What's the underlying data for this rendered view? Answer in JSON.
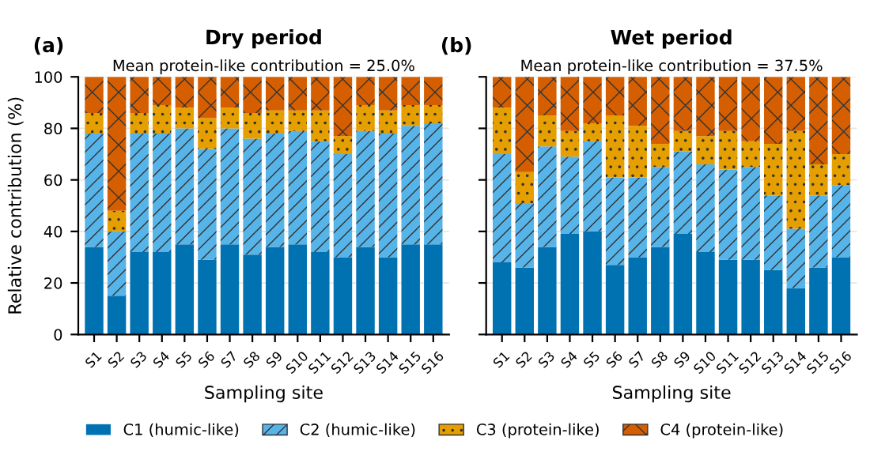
{
  "chart_data": [
    {
      "type": "bar",
      "stacked": true,
      "title": "Dry period",
      "subtitle": "Mean protein-like contribution = 25.0%",
      "xlabel": "Sampling site",
      "ylabel": "Relative contribution (%)",
      "annotations": [
        "(a)"
      ],
      "categories": [
        "S1",
        "S2",
        "S3",
        "S4",
        "S5",
        "S6",
        "S7",
        "S8",
        "S9",
        "S10",
        "S11",
        "S12",
        "S13",
        "S14",
        "S15",
        "S16"
      ],
      "series": [
        {
          "name": "C1 (humic-like)",
          "color": "#0072b2",
          "values": [
            34,
            15,
            32,
            32,
            35,
            29,
            35,
            31,
            34,
            35,
            32,
            30,
            34,
            30,
            35,
            35
          ]
        },
        {
          "name": "C2 (humic-like)",
          "color": "#56b4e9",
          "values": [
            44,
            25,
            46,
            46,
            45,
            43,
            45,
            45,
            44,
            44,
            43,
            40,
            45,
            48,
            46,
            47
          ]
        },
        {
          "name": "C3 (protein-like)",
          "color": "#e69f00",
          "values": [
            8,
            8,
            8,
            11,
            8,
            12,
            8,
            10,
            9,
            8,
            12,
            7,
            10,
            9,
            8,
            7
          ]
        },
        {
          "name": "C4 (protein-like)",
          "color": "#d55e00",
          "values": [
            14,
            52,
            14,
            11,
            12,
            16,
            12,
            14,
            13,
            13,
            13,
            23,
            11,
            13,
            11,
            11
          ]
        }
      ],
      "ylim": [
        0,
        100
      ],
      "yticks": [
        0,
        20,
        40,
        60,
        80,
        100
      ],
      "grid": "y",
      "legend": "bottom"
    },
    {
      "type": "bar",
      "stacked": true,
      "title": "Wet period",
      "subtitle": "Mean protein-like contribution = 37.5%",
      "xlabel": "Sampling site",
      "annotations": [
        "(b)"
      ],
      "categories": [
        "S1",
        "S2",
        "S3",
        "S4",
        "S5",
        "S6",
        "S7",
        "S8",
        "S9",
        "S10",
        "S11",
        "S12",
        "S13",
        "S14",
        "S15",
        "S16"
      ],
      "series": [
        {
          "name": "C1 (humic-like)",
          "color": "#0072b2",
          "values": [
            28,
            26,
            34,
            39,
            40,
            27,
            30,
            34,
            39,
            32,
            29,
            29,
            25,
            18,
            26,
            30
          ]
        },
        {
          "name": "C2 (humic-like)",
          "color": "#56b4e9",
          "values": [
            42,
            25,
            39,
            30,
            35,
            34,
            31,
            31,
            32,
            34,
            35,
            36,
            29,
            23,
            28,
            28
          ]
        },
        {
          "name": "C3 (protein-like)",
          "color": "#e69f00",
          "values": [
            18,
            12,
            12,
            10,
            7,
            24,
            20,
            9,
            8,
            11,
            15,
            10,
            20,
            38,
            12,
            12
          ]
        },
        {
          "name": "C4 (protein-like)",
          "color": "#d55e00",
          "values": [
            12,
            37,
            15,
            21,
            18,
            15,
            19,
            26,
            21,
            23,
            21,
            25,
            26,
            21,
            34,
            30
          ]
        }
      ],
      "ylim": [
        0,
        100
      ],
      "yticks": [
        0,
        20,
        40,
        60,
        80,
        100
      ],
      "grid": "y",
      "tick_labels": "x"
    }
  ]
}
